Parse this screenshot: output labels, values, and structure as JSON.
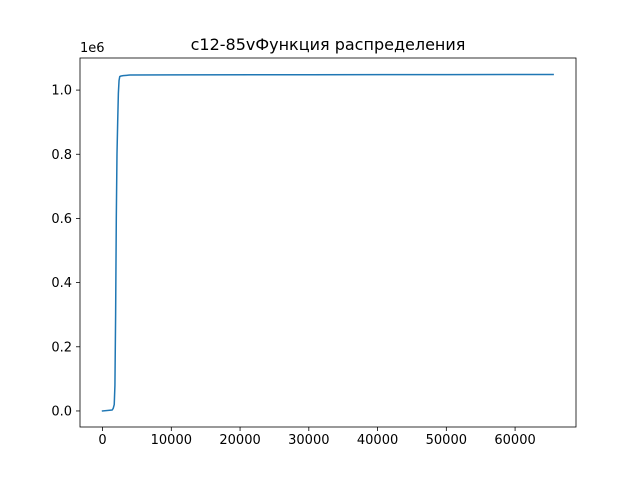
{
  "chart_data": {
    "type": "line",
    "title": "c12-85vФункция распределения",
    "xlabel": "",
    "ylabel": "",
    "y_offset_label": "1e6",
    "xlim": [
      -3280,
      68860
    ],
    "ylim": [
      -50000,
      1100000
    ],
    "x_ticks": [
      {
        "value": 0,
        "label": "0"
      },
      {
        "value": 10000,
        "label": "10000"
      },
      {
        "value": 20000,
        "label": "20000"
      },
      {
        "value": 30000,
        "label": "30000"
      },
      {
        "value": 40000,
        "label": "40000"
      },
      {
        "value": 50000,
        "label": "50000"
      },
      {
        "value": 60000,
        "label": "60000"
      }
    ],
    "y_ticks": [
      {
        "value": 0,
        "label": "0.0"
      },
      {
        "value": 200000,
        "label": "0.2"
      },
      {
        "value": 400000,
        "label": "0.4"
      },
      {
        "value": 600000,
        "label": "0.6"
      },
      {
        "value": 800000,
        "label": "0.8"
      },
      {
        "value": 1000000,
        "label": "1.0"
      }
    ],
    "grid": false,
    "legend": "none",
    "series": [
      {
        "color": "#1f77b4",
        "x": [
          0,
          1400,
          1550,
          1700,
          1800,
          1900,
          2000,
          2100,
          2200,
          2300,
          2400,
          2500,
          2700,
          3000,
          4000,
          10000,
          30000,
          50000,
          65535
        ],
        "y": [
          0,
          3000,
          8000,
          20000,
          80000,
          300000,
          600000,
          800000,
          900000,
          990000,
          1030000,
          1042000,
          1044000,
          1045000,
          1047000,
          1047500,
          1048000,
          1048300,
          1048576
        ]
      }
    ]
  }
}
